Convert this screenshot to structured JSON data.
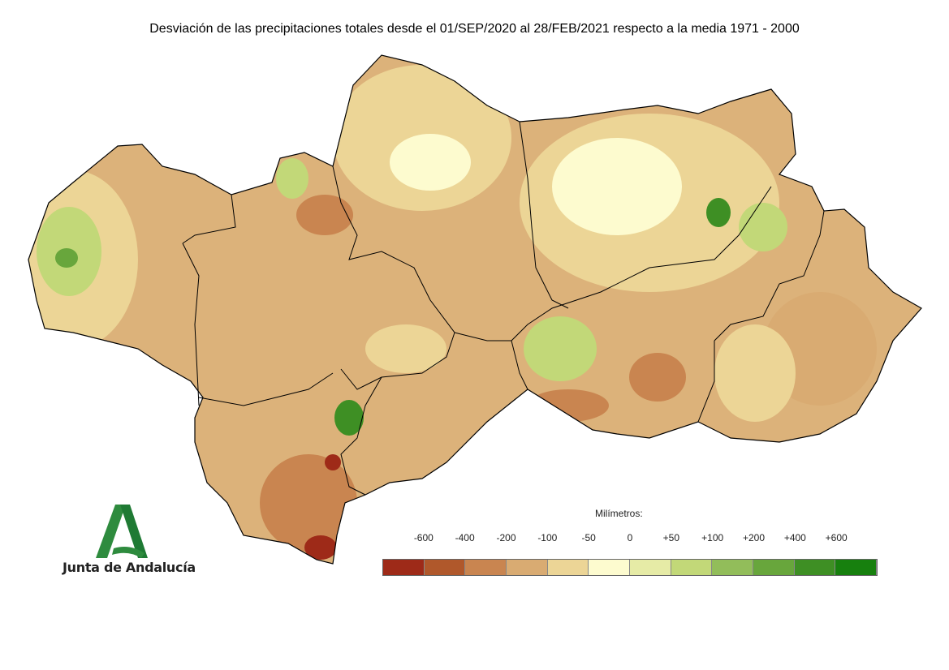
{
  "title": "Desviación de las precipitaciones totales desde el 01/SEP/2020 al 28/FEB/2021 respecto a la media 1971 - 2000",
  "legend": {
    "title": "Milímetros:",
    "ticks": [
      "-600",
      "-400",
      "-200",
      "-100",
      "-50",
      "0",
      "+50",
      "+100",
      "+200",
      "+400",
      "+600"
    ],
    "colors": [
      "#9e2a18",
      "#b0582b",
      "#c98550",
      "#d9ab72",
      "#ecd596",
      "#fdfbcf",
      "#e6eba6",
      "#c2d878",
      "#92bd5a",
      "#68a63c",
      "#3e8f24",
      "#17800e"
    ]
  },
  "logo": {
    "text": "Junta de Andalucía",
    "color": "#2e8b3e"
  }
}
